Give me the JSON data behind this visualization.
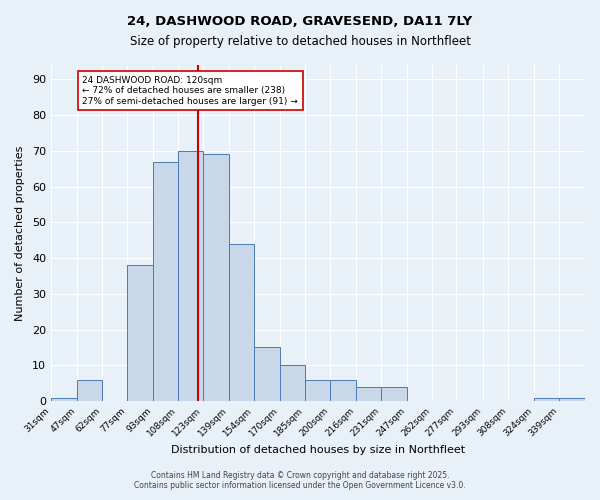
{
  "title_line1": "24, DASHWOOD ROAD, GRAVESEND, DA11 7LY",
  "title_line2": "Size of property relative to detached houses in Northfleet",
  "xlabel": "Distribution of detached houses by size in Northfleet",
  "ylabel": "Number of detached properties",
  "bin_labels": [
    "31sqm",
    "47sqm",
    "62sqm",
    "77sqm",
    "93sqm",
    "108sqm",
    "123sqm",
    "139sqm",
    "154sqm",
    "170sqm",
    "185sqm",
    "200sqm",
    "216sqm",
    "231sqm",
    "247sqm",
    "262sqm",
    "277sqm",
    "293sqm",
    "308sqm",
    "324sqm",
    "339sqm"
  ],
  "bin_edges": [
    31,
    47,
    62,
    77,
    93,
    108,
    123,
    139,
    154,
    170,
    185,
    200,
    216,
    231,
    247,
    262,
    277,
    293,
    308,
    324,
    339,
    355
  ],
  "counts": [
    1,
    6,
    0,
    38,
    67,
    70,
    69,
    44,
    15,
    10,
    6,
    6,
    4,
    4,
    0,
    0,
    0,
    0,
    0,
    1,
    1
  ],
  "bar_color": "#c8d8e8",
  "bar_edge_color": "#4a7ab5",
  "vline_color": "#cc0000",
  "vline_x": 120,
  "annotation_text": "24 DASHWOOD ROAD: 120sqm\n← 72% of detached houses are smaller (238)\n27% of semi-detached houses are larger (91) →",
  "annotation_box_color": "#ffffff",
  "annotation_box_edge": "#cc0000",
  "ylim": [
    0,
    94
  ],
  "yticks": [
    0,
    10,
    20,
    30,
    40,
    50,
    60,
    70,
    80,
    90
  ],
  "footer_line1": "Contains HM Land Registry data © Crown copyright and database right 2025.",
  "footer_line2": "Contains public sector information licensed under the Open Government Licence v3.0.",
  "bg_color": "#e8f0f8",
  "plot_bg_color": "#e8f0f8"
}
